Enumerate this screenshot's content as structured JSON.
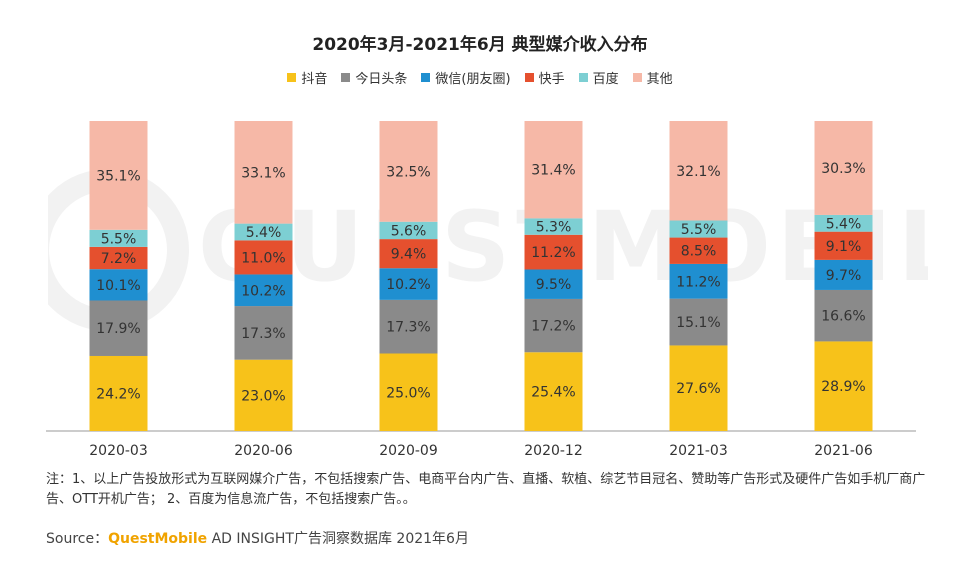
{
  "title": "2020年3月-2021年6月 典型媒介收入分布",
  "note": "注：1、以上广告投放形式为互联网媒介广告，不包括搜索广告、电商平台内广告、直播、软植、综艺节目冠名、赞助等广告形式及硬件广告如手机厂商广告、OTT开机广告； 2、百度为信息流广告，不包括搜索广告。。",
  "source": {
    "prefix": "Source：",
    "brand": "QuestMobile",
    "suffix": " AD INSIGHT广告洞察数据库 2021年6月"
  },
  "watermark": "QUESTMOBILE",
  "colors": {
    "抖音": "#f7c21a",
    "今日头条": "#8a8a8a",
    "微信(朋友圈)": "#1f8fd0",
    "快手": "#e5502e",
    "百度": "#7dcfd3",
    "其他": "#f6b8a7"
  },
  "chart_data": {
    "type": "bar",
    "stacked": true,
    "percent": true,
    "categories": [
      "2020-03",
      "2020-06",
      "2020-09",
      "2020-12",
      "2021-03",
      "2021-06"
    ],
    "series": [
      {
        "name": "抖音",
        "values": [
          24.2,
          23.0,
          25.0,
          25.4,
          27.6,
          28.9
        ],
        "labels": [
          "24.2%",
          "23.0%",
          "25.0%",
          "25.4%",
          "27.6%",
          "28.9%"
        ]
      },
      {
        "name": "今日头条",
        "values": [
          17.9,
          17.3,
          17.3,
          17.2,
          15.1,
          16.6
        ],
        "labels": [
          "17.9%",
          "17.3%",
          "17.3%",
          "17.2%",
          "15.1%",
          "16.6%"
        ]
      },
      {
        "name": "微信(朋友圈)",
        "values": [
          10.1,
          10.2,
          10.2,
          9.5,
          11.2,
          9.7
        ],
        "labels": [
          "10.1%",
          "10.2%",
          "10.2%",
          "9.5%",
          "11.2%",
          "9.7%"
        ]
      },
      {
        "name": "快手",
        "values": [
          7.2,
          11.0,
          9.4,
          11.2,
          8.5,
          9.1
        ],
        "labels": [
          "7.2%",
          "11.0%",
          "9.4%",
          "11.2%",
          "8.5%",
          "9.1%"
        ]
      },
      {
        "name": "百度",
        "values": [
          5.5,
          5.4,
          5.6,
          5.3,
          5.5,
          5.4
        ],
        "labels": [
          "5.5%",
          "5.4%",
          "5.6%",
          "5.3%",
          "5.5%",
          "5.4%"
        ]
      },
      {
        "name": "其他",
        "values": [
          35.1,
          33.1,
          32.5,
          31.4,
          32.1,
          30.3
        ],
        "labels": [
          "35.1%",
          "33.1%",
          "32.5%",
          "31.4%",
          "32.1%",
          "30.3%"
        ]
      }
    ],
    "legend_position": "top",
    "grid": false
  }
}
